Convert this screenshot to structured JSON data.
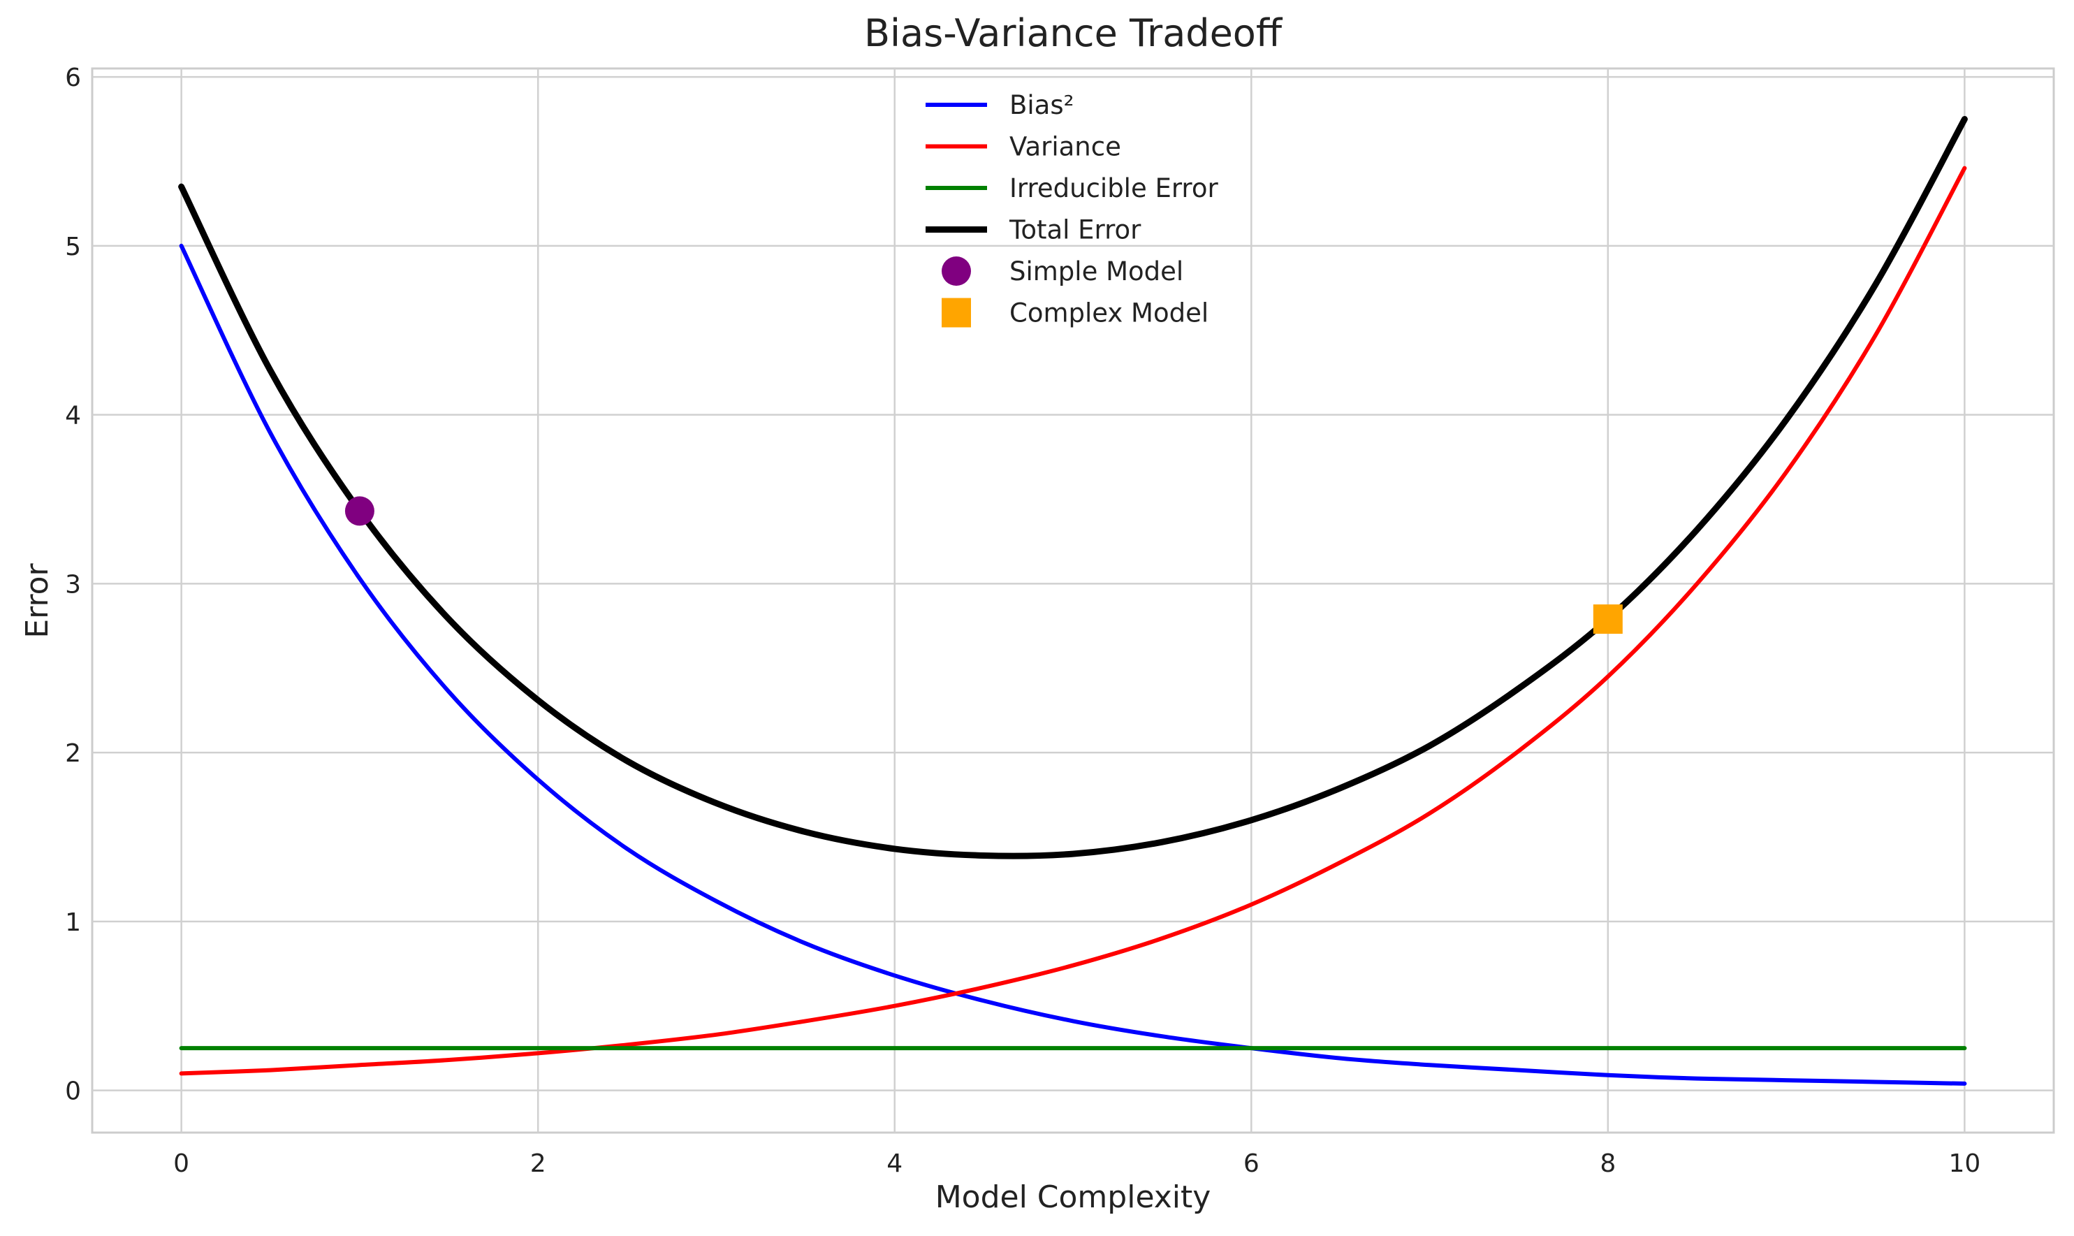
{
  "chart_data": {
    "type": "line",
    "title": "Bias-Variance Tradeoff",
    "xlabel": "Model Complexity",
    "ylabel": "Error",
    "xlim": [
      -0.5,
      10.5
    ],
    "ylim": [
      -0.25,
      6.05
    ],
    "xticks": [
      0,
      2,
      4,
      6,
      8,
      10
    ],
    "yticks": [
      0,
      1,
      2,
      3,
      4,
      5,
      6
    ],
    "grid": true,
    "legend_position": "top-center",
    "x": [
      0,
      0.5,
      1,
      1.5,
      2,
      2.5,
      3,
      3.5,
      4,
      4.5,
      5,
      5.5,
      6,
      6.5,
      7,
      7.5,
      8,
      8.5,
      9,
      9.5,
      10
    ],
    "series": [
      {
        "name": "Bias²",
        "color": "#0000ff",
        "values": [
          5.0,
          3.89,
          3.03,
          2.36,
          1.84,
          1.43,
          1.12,
          0.87,
          0.68,
          0.53,
          0.41,
          0.32,
          0.25,
          0.19,
          0.15,
          0.12,
          0.09,
          0.07,
          0.06,
          0.05,
          0.04
        ]
      },
      {
        "name": "Variance",
        "color": "#ff0000",
        "values": [
          0.1,
          0.12,
          0.15,
          0.18,
          0.22,
          0.27,
          0.33,
          0.41,
          0.5,
          0.61,
          0.74,
          0.9,
          1.1,
          1.35,
          1.64,
          2.01,
          2.45,
          3.0,
          3.66,
          4.47,
          5.46
        ]
      },
      {
        "name": "Irreducible Error",
        "color": "#008000",
        "values": [
          0.25,
          0.25,
          0.25,
          0.25,
          0.25,
          0.25,
          0.25,
          0.25,
          0.25,
          0.25,
          0.25,
          0.25,
          0.25,
          0.25,
          0.25,
          0.25,
          0.25,
          0.25,
          0.25,
          0.25,
          0.25
        ]
      },
      {
        "name": "Total Error",
        "color": "#000000",
        "values": [
          5.35,
          4.26,
          3.43,
          2.79,
          2.31,
          1.95,
          1.7,
          1.53,
          1.43,
          1.39,
          1.4,
          1.47,
          1.6,
          1.79,
          2.04,
          2.38,
          2.79,
          3.32,
          3.97,
          4.77,
          5.75
        ]
      }
    ],
    "markers": [
      {
        "name": "Simple Model",
        "shape": "circle",
        "color": "#800080",
        "x": 1,
        "y": 3.43
      },
      {
        "name": "Complex Model",
        "shape": "square",
        "color": "#ffa500",
        "x": 8,
        "y": 2.79
      }
    ]
  }
}
